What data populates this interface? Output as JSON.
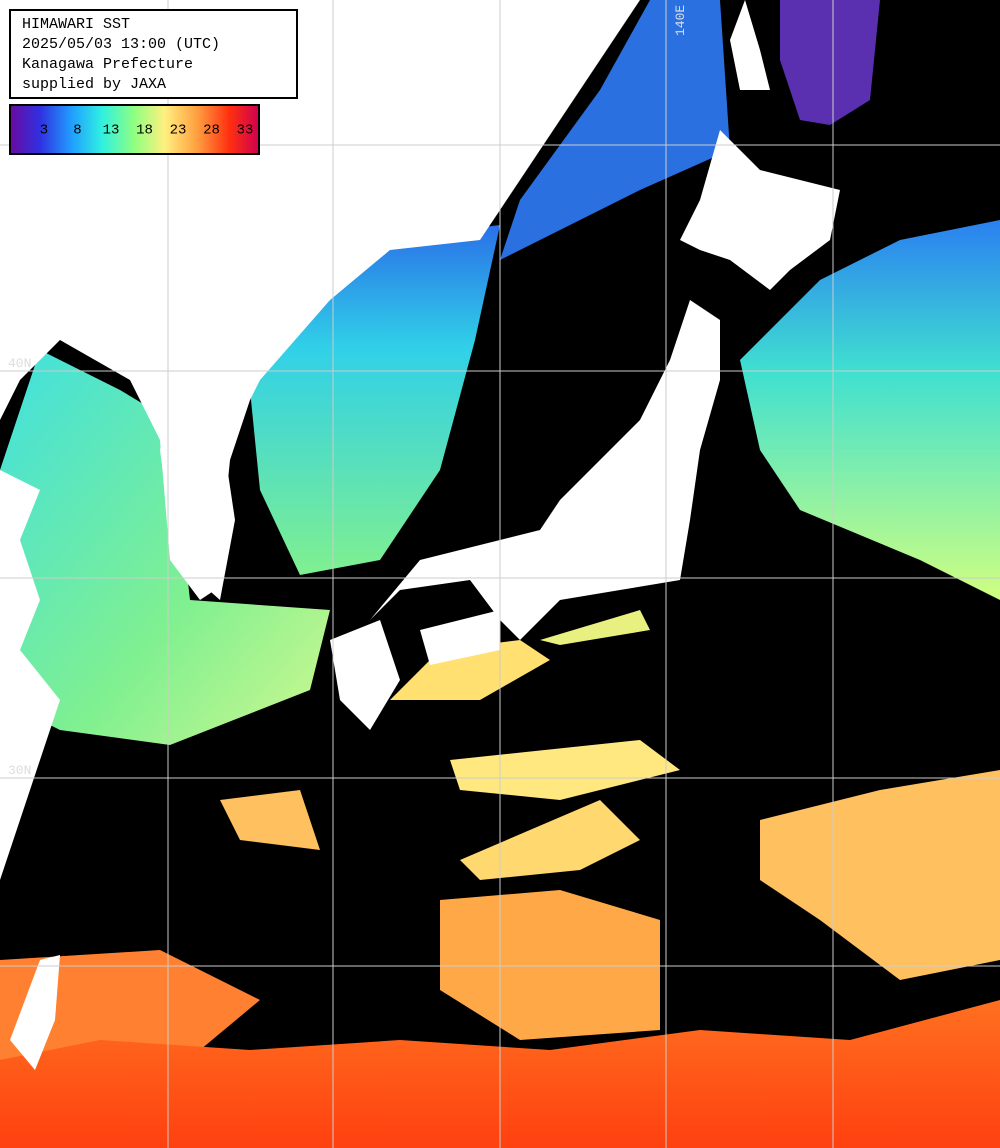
{
  "header": {
    "lines": [
      "HIMAWARI SST",
      "2025/05/03 13:00 (UTC)",
      "Kanagawa Prefecture",
      "supplied by JAXA"
    ]
  },
  "colorbar": {
    "ticks": [
      3,
      8,
      13,
      18,
      23,
      28,
      33
    ]
  },
  "grid_labels": {
    "lon": "140E",
    "lat_north": "40N",
    "lat_south": "30N"
  }
}
